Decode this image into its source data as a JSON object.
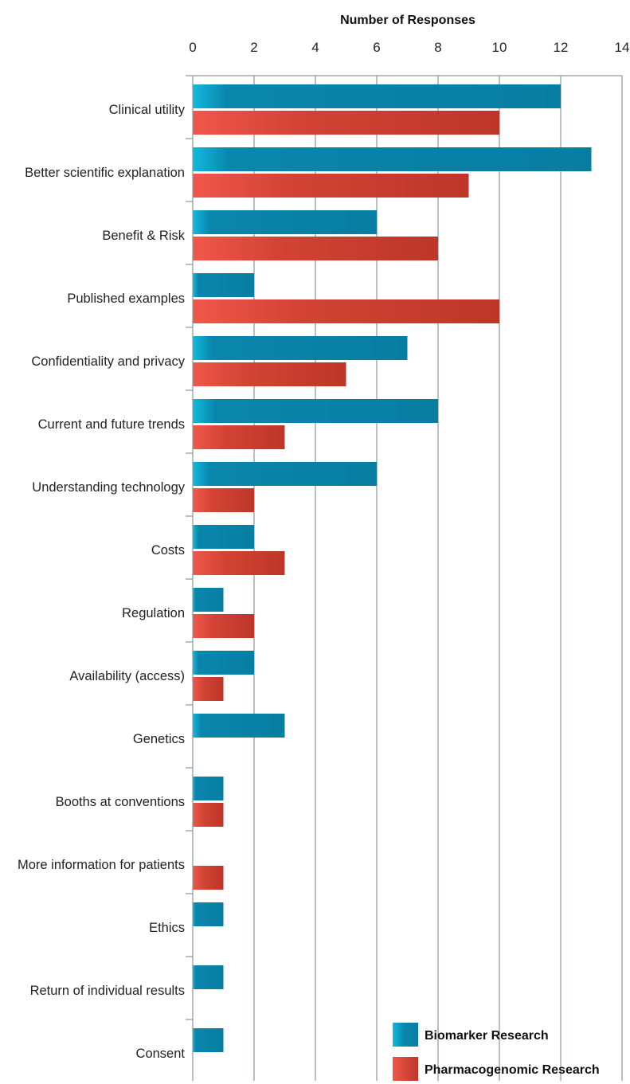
{
  "chart_data": {
    "type": "bar",
    "orientation": "horizontal",
    "title": "",
    "xlabel": "Number of Responses",
    "ylabel": "",
    "xlim": [
      0,
      14
    ],
    "xticks": [
      0,
      2,
      4,
      6,
      8,
      10,
      12,
      14
    ],
    "grid": true,
    "legend_position": "bottom-right",
    "categories": [
      "Clinical utility",
      "Better scientific explanation",
      "Benefit & Risk",
      "Published examples",
      "Confidentiality and privacy",
      "Current and future trends",
      "Understanding technology",
      "Costs",
      "Regulation",
      "Availability (access)",
      "Genetics",
      "Booths at conventions",
      "More information for patients",
      "Ethics",
      "Return of individual results",
      "Consent"
    ],
    "series": [
      {
        "name": "Biomarker Research",
        "color": "#0a7fa3",
        "values": [
          12,
          13,
          6,
          2,
          7,
          8,
          6,
          2,
          1,
          2,
          3,
          1,
          0,
          1,
          1,
          1
        ]
      },
      {
        "name": "Pharmacogenomic Research",
        "color": "#c23a2c",
        "values": [
          10,
          9,
          8,
          10,
          5,
          3,
          2,
          3,
          2,
          1,
          0,
          1,
          1,
          0,
          0,
          0
        ]
      }
    ]
  }
}
